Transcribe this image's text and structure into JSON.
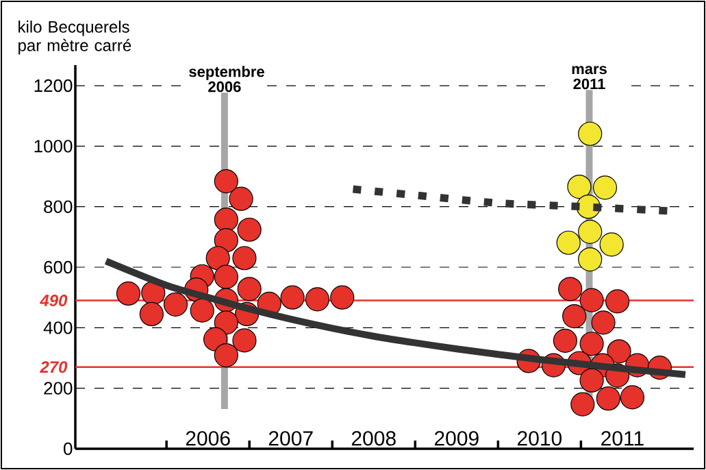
{
  "chart_data": {
    "type": "scatter",
    "ylabel": "kilo Becquerels par mètre carré",
    "xlim": [
      2004.9,
      2012.36
    ],
    "ylim": [
      0,
      1268
    ],
    "xticks": [
      {
        "value": 2006,
        "label": null
      },
      {
        "value": 2007,
        "label": null
      },
      {
        "value": 2008,
        "label": null
      },
      {
        "value": 2009,
        "label": null
      },
      {
        "value": 2010,
        "label": null
      },
      {
        "value": 2011,
        "label": null
      },
      {
        "value": 2006.5,
        "label": "2006"
      },
      {
        "value": 2007.5,
        "label": "2007"
      },
      {
        "value": 2008.5,
        "label": "2008"
      },
      {
        "value": 2009.5,
        "label": "2009"
      },
      {
        "value": 2010.5,
        "label": "2010"
      },
      {
        "value": 2011.5,
        "label": "2011"
      }
    ],
    "yticks": [
      0,
      200,
      400,
      600,
      800,
      1000,
      1200
    ],
    "grid": "y",
    "ref_lines": [
      {
        "axis": "x",
        "value": 2006.7,
        "label": "septembre 2006",
        "color": "#a6a6a6"
      },
      {
        "axis": "x",
        "value": 2011.1,
        "label": "mars 2011",
        "color": "#a6a6a6"
      },
      {
        "axis": "y",
        "value": 490,
        "label": "490",
        "color": "#e5322b"
      },
      {
        "axis": "y",
        "value": 270,
        "label": "270",
        "color": "#e5322b"
      }
    ],
    "series": [
      {
        "color": "#e5322b",
        "marker": "circle",
        "x": [
          2006.72,
          2006.9,
          2006.72,
          2007.0,
          2006.72,
          2006.62,
          2006.94,
          2006.43,
          2006.72,
          2007.0,
          2005.54,
          2005.84,
          2006.36,
          2006.72,
          2007.24,
          2007.52,
          2007.82,
          2008.12,
          2005.82,
          2006.11,
          2006.43,
          2006.97,
          2006.72,
          2006.59,
          2006.94,
          2006.72,
          2010.87,
          2011.13,
          2011.44,
          2010.92,
          2011.27,
          2010.81,
          2011.13,
          2011.46,
          2010.37,
          2010.67,
          2010.98,
          2011.26,
          2011.68,
          2011.95,
          2011.13,
          2011.44,
          2011.02,
          2011.33,
          2011.62
        ],
        "values": [
          884,
          826,
          757,
          724,
          689,
          630,
          630,
          570,
          568,
          528,
          513,
          515,
          526,
          491,
          479,
          500,
          494,
          500,
          445,
          477,
          457,
          445,
          417,
          362,
          358,
          309,
          528,
          491,
          487,
          438,
          417,
          357,
          347,
          322,
          290,
          276,
          283,
          276,
          276,
          268,
          226,
          242,
          147,
          166,
          170
        ]
      },
      {
        "color": "#f2e631",
        "marker": "circle",
        "x": [
          2011.11,
          2010.98,
          2011.29,
          2011.09,
          2011.11,
          2010.85,
          2011.37,
          2011.11
        ],
        "values": [
          1041,
          866,
          863,
          800,
          717,
          681,
          675,
          626
        ]
      },
      {
        "type": "line",
        "color": "#333333",
        "x": [
          2005.27,
          2006,
          2006.5,
          2007,
          2007.5,
          2008,
          2008.5,
          2009,
          2009.5,
          2010,
          2010.5,
          2011,
          2011.5,
          2012.26
        ],
        "values": [
          620,
          540,
          500,
          462,
          428,
          398,
          372,
          350,
          330,
          312,
          295,
          280,
          265,
          245
        ]
      },
      {
        "type": "line",
        "line_style": "dashed",
        "color": "#333333",
        "x": [
          2008.25,
          2009,
          2010,
          2011,
          2012.13
        ],
        "values": [
          858,
          838,
          812,
          800,
          785
        ]
      }
    ]
  }
}
